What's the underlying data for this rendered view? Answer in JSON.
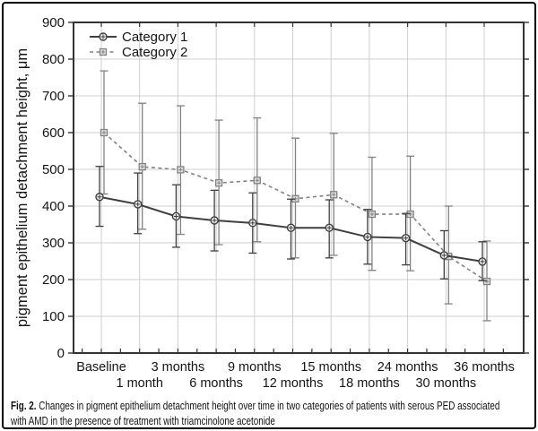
{
  "figure": {
    "background": "#ffffff",
    "border_color": "#000000"
  },
  "caption": {
    "label": "Fig. 2.",
    "line1_rest": "Changes in pigment epithelium detachment height over time in two categories of patients with serous PED associated",
    "line2": "with AMD in the presence of treatment with triamcinolone acetonide"
  },
  "chart_data": {
    "type": "line",
    "title": "",
    "xlabel": "",
    "ylabel": "pigment epithelium detachment height,  μm",
    "ylim": [
      0,
      900
    ],
    "ytick_step": 100,
    "grid": true,
    "legend_position": "top-left",
    "error_bars": true,
    "categories": [
      "Baseline",
      "1  month",
      "3 months",
      "6 months",
      "9 months",
      "12 months",
      "15 months",
      "18 months",
      "24 months",
      "30 months",
      "36 months"
    ],
    "series": [
      {
        "name": "Category 1",
        "marker": "circle-cross",
        "line_style": "solid",
        "color": "#3f3f3f",
        "marker_fill": "#ececec",
        "values": [
          425,
          405,
          372,
          361,
          354,
          341,
          341,
          316,
          313,
          266,
          249
        ],
        "err_low": [
          345,
          325,
          288,
          278,
          272,
          256,
          259,
          242,
          240,
          202,
          197
        ],
        "err_high": [
          508,
          490,
          458,
          443,
          436,
          419,
          417,
          391,
          380,
          333,
          303
        ]
      },
      {
        "name": "Category  2",
        "marker": "square-cross",
        "line_style": "dashed",
        "color": "#828282",
        "marker_fill": "#dcdcdc",
        "values": [
          600,
          507,
          499,
          463,
          470,
          420,
          431,
          378,
          378,
          263,
          195
        ],
        "err_low": [
          433,
          337,
          323,
          295,
          303,
          259,
          266,
          225,
          224,
          134,
          88
        ],
        "err_high": [
          768,
          680,
          673,
          634,
          640,
          585,
          598,
          533,
          536,
          400,
          305
        ]
      }
    ],
    "axis_color": "#333333",
    "gridline_color": "#cfcfcf"
  }
}
